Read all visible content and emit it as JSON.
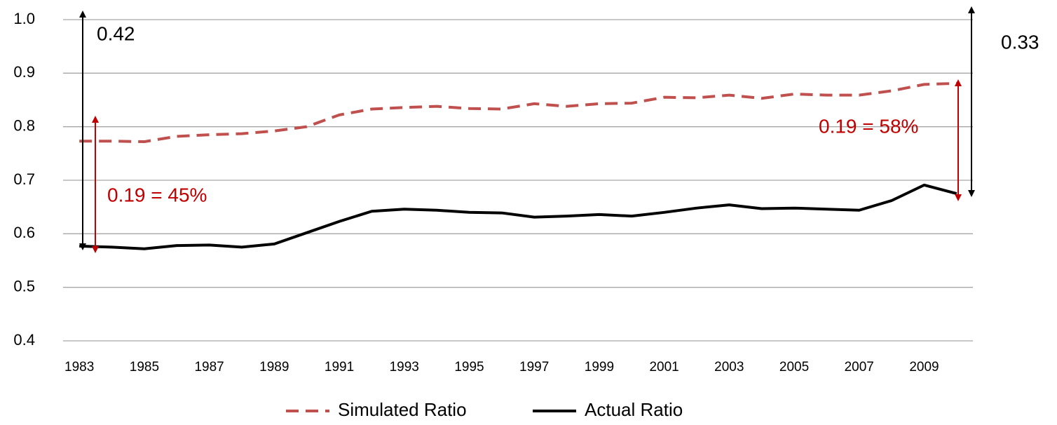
{
  "chart_data": {
    "type": "line",
    "categories": [
      "1983",
      null,
      "1985",
      null,
      "1987",
      null,
      "1989",
      null,
      "1991",
      null,
      "1993",
      null,
      "1995",
      null,
      "1997",
      null,
      "1999",
      null,
      "2001",
      null,
      "2003",
      null,
      "2005",
      null,
      "2007",
      null,
      "2009",
      null
    ],
    "series": [
      {
        "name": "Simulated Ratio",
        "color": "#c0504d",
        "dash": true,
        "values": [
          0.773,
          0.773,
          0.772,
          0.782,
          0.785,
          0.787,
          0.792,
          0.8,
          0.822,
          0.833,
          0.836,
          0.838,
          0.834,
          0.833,
          0.843,
          0.838,
          0.843,
          0.844,
          0.855,
          0.854,
          0.859,
          0.853,
          0.861,
          0.859,
          0.859,
          0.867,
          0.879,
          0.881
        ]
      },
      {
        "name": "Actual Ratio",
        "color": "#000000",
        "dash": false,
        "values": [
          0.577,
          0.575,
          0.572,
          0.578,
          0.579,
          0.575,
          0.581,
          0.602,
          0.623,
          0.642,
          0.646,
          0.644,
          0.64,
          0.639,
          0.631,
          0.633,
          0.636,
          0.633,
          0.64,
          0.648,
          0.654,
          0.647,
          0.648,
          0.646,
          0.644,
          0.662,
          0.691,
          0.675
        ]
      }
    ],
    "ylim": [
      0.4,
      1.0
    ],
    "yticks": [
      0.4,
      0.5,
      0.6,
      0.7,
      0.8,
      0.9,
      {
        "value": 1,
        "label": "1.0"
      }
    ],
    "grid": true,
    "annotations": [
      "0.42",
      "0.33",
      "0.19 = 45%",
      "0.19 = 58%"
    ]
  }
}
